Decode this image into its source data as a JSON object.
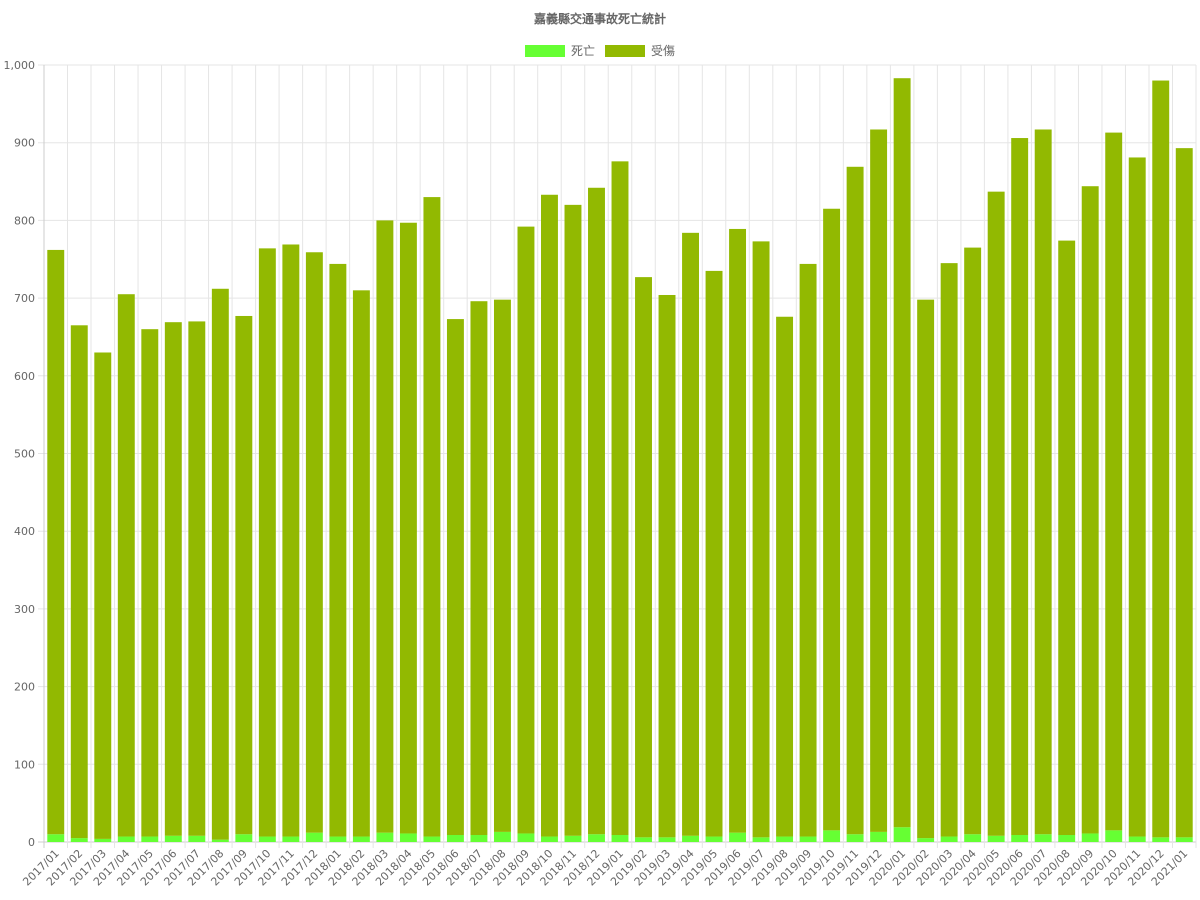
{
  "chart_data": {
    "type": "bar",
    "stacked": true,
    "title": "嘉義縣交通事故死亡統計",
    "legend_position": "top",
    "grid": true,
    "ylim": [
      0,
      1000
    ],
    "y_ticks": [
      "0",
      "100",
      "200",
      "300",
      "400",
      "500",
      "600",
      "700",
      "800",
      "900",
      "1,000"
    ],
    "categories": [
      "2017/01",
      "2017/02",
      "2017/03",
      "2017/04",
      "2017/05",
      "2017/06",
      "2017/07",
      "2017/08",
      "2017/09",
      "2017/10",
      "2017/11",
      "2017/12",
      "2018/01",
      "2018/02",
      "2018/03",
      "2018/04",
      "2018/05",
      "2018/06",
      "2018/07",
      "2018/08",
      "2018/09",
      "2018/10",
      "2018/11",
      "2018/12",
      "2019/01",
      "2019/02",
      "2019/03",
      "2019/04",
      "2019/05",
      "2019/06",
      "2019/07",
      "2019/08",
      "2019/09",
      "2019/10",
      "2019/11",
      "2019/12",
      "2020/01",
      "2020/02",
      "2020/03",
      "2020/04",
      "2020/05",
      "2020/06",
      "2020/07",
      "2020/08",
      "2020/09",
      "2020/10",
      "2020/11",
      "2020/12",
      "2021/01"
    ],
    "series": [
      {
        "name": "死亡",
        "color": "#66ff33",
        "values": [
          10,
          5,
          4,
          7,
          7,
          8,
          8,
          3,
          10,
          7,
          7,
          12,
          7,
          7,
          12,
          11,
          7,
          9,
          9,
          13,
          11,
          7,
          8,
          10,
          9,
          6,
          6,
          8,
          7,
          12,
          6,
          7,
          7,
          15,
          10,
          13,
          19,
          5,
          7,
          10,
          8,
          9,
          10,
          9,
          11,
          15,
          7,
          6,
          6
        ]
      },
      {
        "name": "受傷",
        "color": "#92b901",
        "values": [
          752,
          660,
          626,
          698,
          653,
          661,
          662,
          709,
          667,
          757,
          762,
          747,
          737,
          703,
          788,
          786,
          823,
          664,
          687,
          685,
          781,
          826,
          812,
          832,
          867,
          721,
          698,
          776,
          728,
          777,
          767,
          669,
          737,
          800,
          859,
          904,
          964,
          693,
          738,
          755,
          829,
          897,
          907,
          765,
          833,
          898,
          874,
          974,
          887
        ]
      }
    ]
  }
}
